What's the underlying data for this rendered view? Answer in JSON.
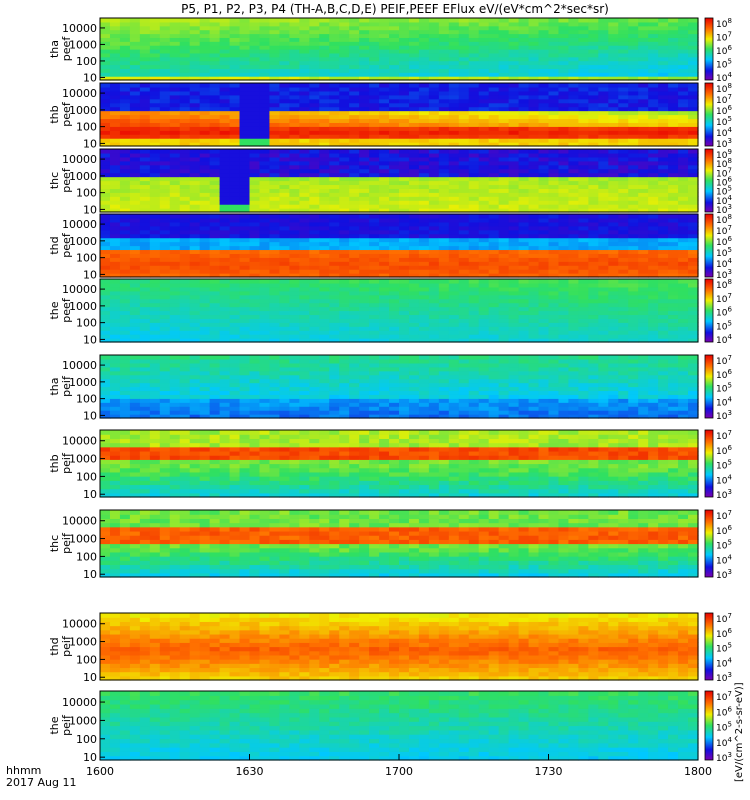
{
  "chart_data": {
    "type": "heatmap",
    "title": "P5, P1, P2, P3, P4 (TH-A,B,C,D,E) PEIF,PEEF EFlux eV/(eV*cm^2*sec*sr)",
    "x_corner_label": [
      "hhmm",
      "2017 Aug 11"
    ],
    "x_ticks": [
      "1600",
      "1630",
      "1700",
      "1730",
      "1800"
    ],
    "x_range": [
      "1600",
      "1800"
    ],
    "y_ticks": [
      "10",
      "100",
      "1000",
      "10000"
    ],
    "y_scale": "log",
    "colorbar_title": "[eV/(cm^2-s-sr-eV)]",
    "panels": [
      {
        "ylabel": [
          "tha",
          "peef"
        ],
        "colorbar_ticks": [
          "10^4",
          "10^5",
          "10^6",
          "10^7",
          "10^8"
        ]
      },
      {
        "ylabel": [
          "thb",
          "peef"
        ],
        "colorbar_ticks": [
          "10^3",
          "10^4",
          "10^5",
          "10^6",
          "10^7",
          "10^8"
        ]
      },
      {
        "ylabel": [
          "thc",
          "peef"
        ],
        "colorbar_ticks": [
          "10^3",
          "10^4",
          "10^5",
          "10^6",
          "10^7",
          "10^8",
          "10^9"
        ]
      },
      {
        "ylabel": [
          "thd",
          "peef"
        ],
        "colorbar_ticks": [
          "10^3",
          "10^4",
          "10^5",
          "10^6",
          "10^7",
          "10^8"
        ]
      },
      {
        "ylabel": [
          "the",
          "peef"
        ],
        "colorbar_ticks": [
          "10^4",
          "10^5",
          "10^6",
          "10^7",
          "10^8"
        ]
      },
      {
        "ylabel": [
          "tha",
          "peif"
        ],
        "colorbar_ticks": [
          "10^3",
          "10^4",
          "10^5",
          "10^6",
          "10^7"
        ]
      },
      {
        "ylabel": [
          "thb",
          "peif"
        ],
        "colorbar_ticks": [
          "10^3",
          "10^4",
          "10^5",
          "10^6",
          "10^7"
        ]
      },
      {
        "ylabel": [
          "thc",
          "peif"
        ],
        "colorbar_ticks": [
          "10^3",
          "10^4",
          "10^5",
          "10^6",
          "10^7"
        ]
      },
      {
        "ylabel": [
          "thd",
          "peif"
        ],
        "colorbar_ticks": [
          "10^3",
          "10^4",
          "10^5",
          "10^6",
          "10^7"
        ]
      },
      {
        "ylabel": [
          "the",
          "peif"
        ],
        "colorbar_ticks": [
          "10^3",
          "10^4",
          "10^5",
          "10^6",
          "10^7"
        ]
      }
    ]
  }
}
